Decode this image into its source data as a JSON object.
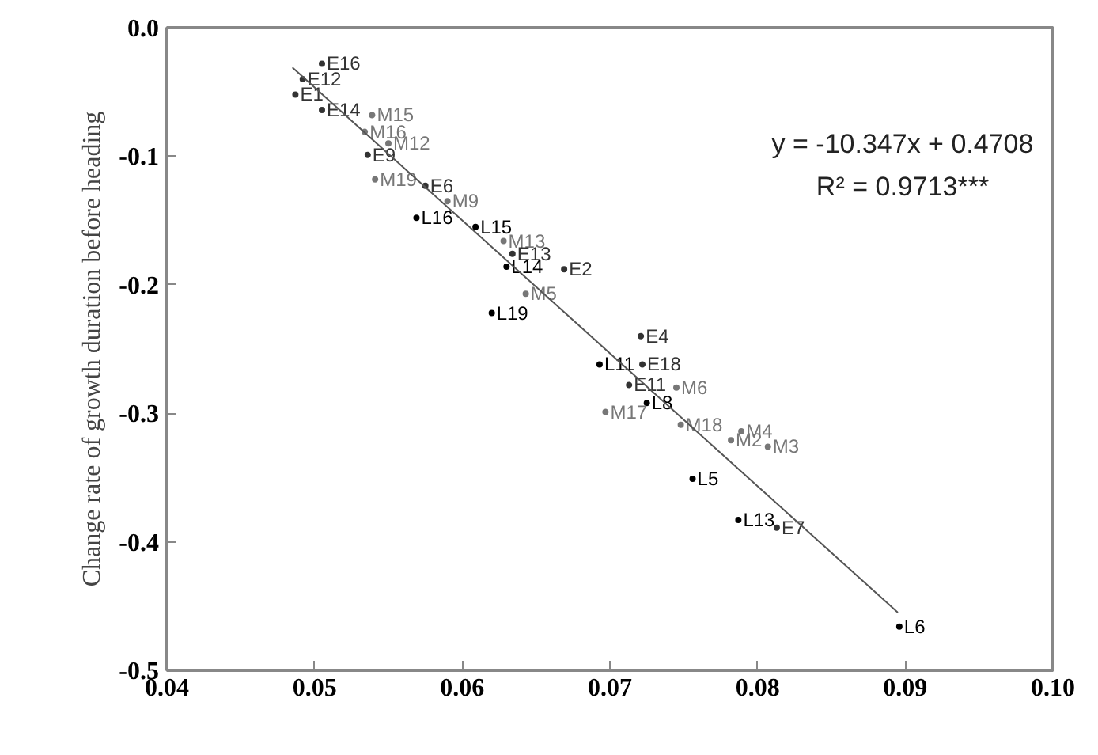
{
  "chart_data": {
    "type": "scatter",
    "ylabel": "Change rate of growth duration before heading",
    "xlim": [
      0.04,
      0.1
    ],
    "ylim": [
      -0.5,
      0.0
    ],
    "xticks": [
      0.04,
      0.05,
      0.06,
      0.07,
      0.08,
      0.09,
      {
        "value": 0.1,
        "label": "0.10"
      }
    ],
    "yticks": [
      {
        "value": -0.5,
        "label": "-0.5"
      },
      {
        "value": -0.4,
        "label": "-0.4"
      },
      {
        "value": -0.3,
        "label": "-0.3"
      },
      {
        "value": -0.2,
        "label": "-0.2"
      },
      {
        "value": -0.1,
        "label": "-0.1"
      },
      {
        "value": 0.0,
        "label": "0.0"
      }
    ],
    "grid": false,
    "annotations": [
      "y = -10.347x + 0.4708",
      "R² = 0.9713***"
    ],
    "series": [
      {
        "marker": "circle",
        "x": [
          0.0505,
          0.0492,
          0.0487,
          0.0505,
          0.0539,
          0.0534,
          0.055,
          0.0536,
          0.0541,
          0.0575,
          0.059,
          0.0569,
          0.0609,
          0.0628,
          0.0634,
          0.063,
          0.0669,
          0.0643,
          0.062,
          0.0721,
          0.0693,
          0.0722,
          0.0745,
          0.0713,
          0.0725,
          0.0697,
          0.0748,
          0.0789,
          0.0782,
          0.0807,
          0.0756,
          0.0787,
          0.0813,
          0.0896
        ],
        "values": [
          -0.028,
          -0.04,
          -0.052,
          -0.064,
          -0.068,
          -0.081,
          -0.09,
          -0.099,
          -0.118,
          -0.123,
          -0.135,
          -0.148,
          -0.155,
          -0.166,
          -0.176,
          -0.186,
          -0.188,
          -0.207,
          -0.222,
          -0.24,
          -0.262,
          -0.262,
          -0.28,
          -0.278,
          -0.292,
          -0.299,
          -0.309,
          -0.314,
          -0.321,
          -0.326,
          -0.351,
          -0.383,
          -0.389,
          -0.466
        ],
        "value_labels": [
          "E16",
          "E12",
          "E1",
          "E14",
          "M15",
          "M16",
          "M12",
          "E9",
          "M19",
          "E6",
          "M9",
          "L16",
          "L15",
          "M13",
          "E13",
          "L14",
          "E2",
          "M5",
          "L19",
          "E4",
          "L11",
          "E18",
          "M6",
          "E11",
          "L8",
          "M17",
          "M18",
          "M4",
          "M2",
          "M3",
          "L5",
          "L13",
          "E7",
          "L6"
        ],
        "colors": [
          "#333333",
          "#333333",
          "#333333",
          "#333333",
          "#777777",
          "#777777",
          "#777777",
          "#333333",
          "#777777",
          "#333333",
          "#777777",
          "#000000",
          "#000000",
          "#777777",
          "#333333",
          "#000000",
          "#333333",
          "#777777",
          "#000000",
          "#333333",
          "#000000",
          "#333333",
          "#777777",
          "#333333",
          "#000000",
          "#777777",
          "#777777",
          "#777777",
          "#777777",
          "#777777",
          "#000000",
          "#000000",
          "#333333",
          "#000000"
        ]
      },
      {
        "type": "line",
        "x": [
          0.0485,
          0.0895
        ],
        "values": [
          -0.031,
          -0.455
        ],
        "color": "#555555",
        "marker": "none",
        "line_style": "solid"
      }
    ]
  }
}
